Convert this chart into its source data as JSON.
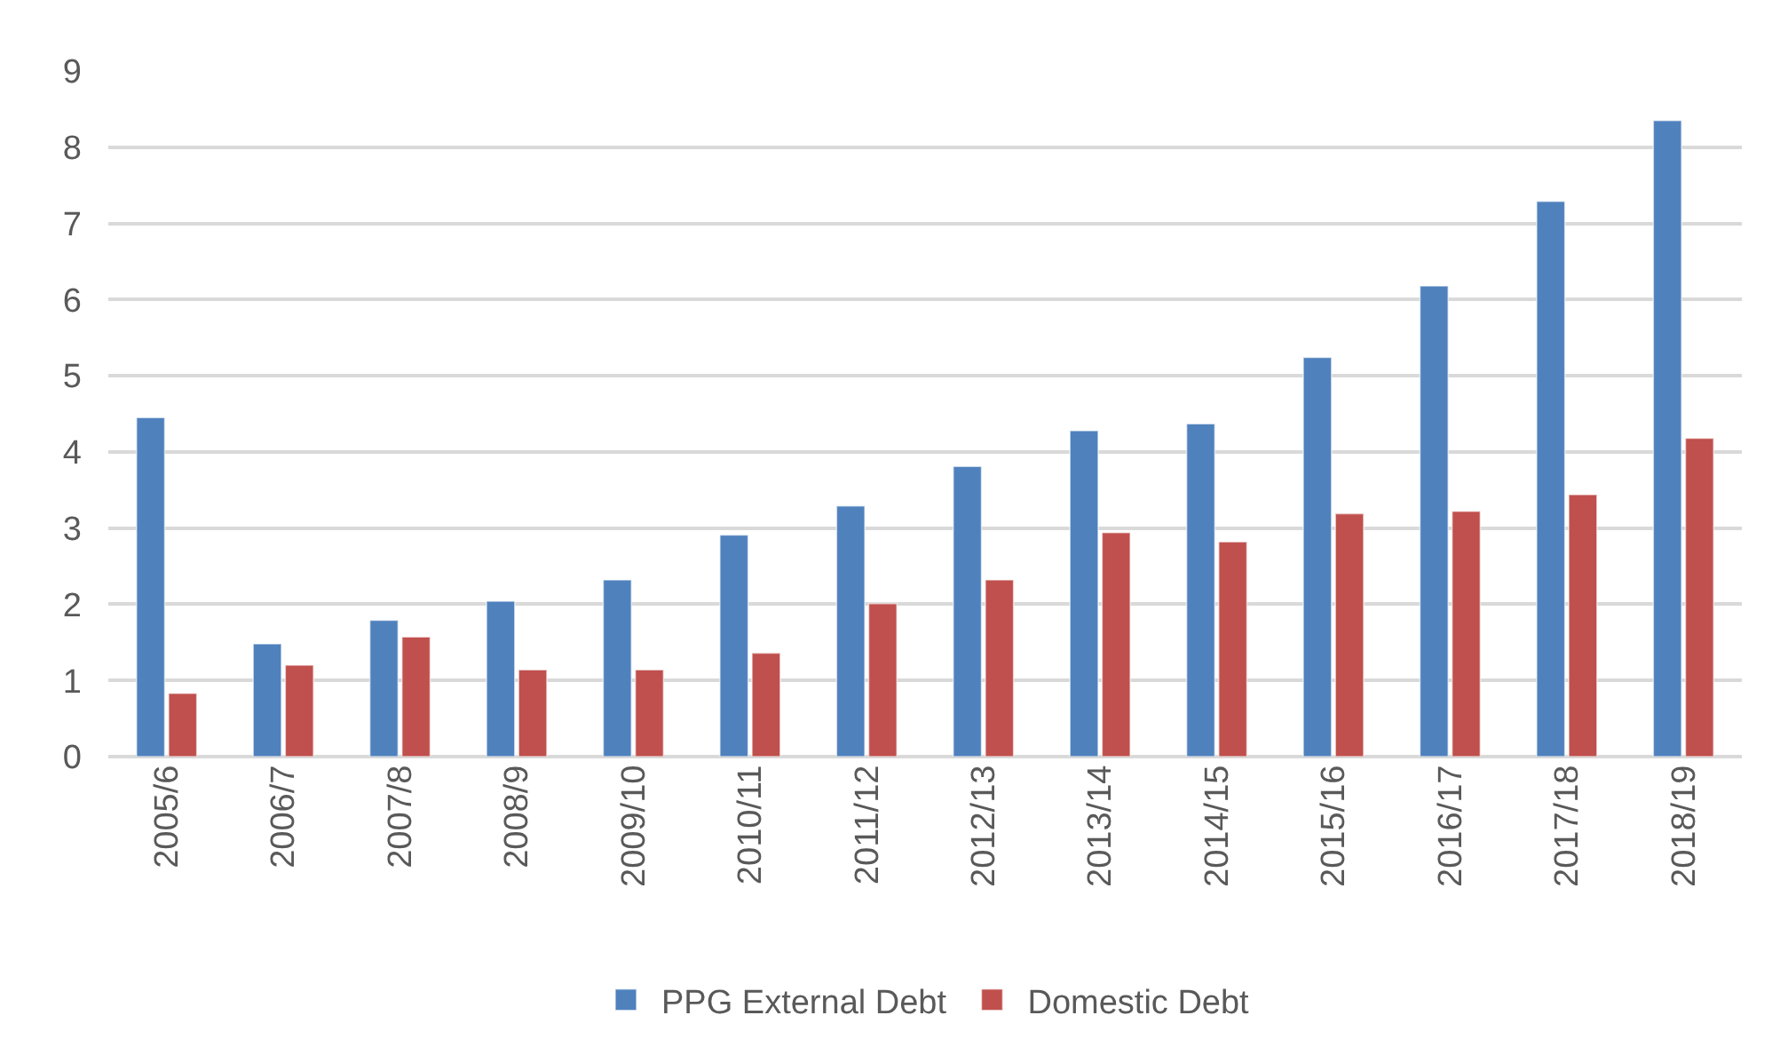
{
  "chart_data": {
    "type": "bar",
    "categories": [
      "2005/6",
      "2006/7",
      "2007/8",
      "2008/9",
      "2009/10",
      "2010/11",
      "2011/12",
      "2012/13",
      "2013/14",
      "2014/15",
      "2015/16",
      "2016/17",
      "2017/18",
      "2018/19"
    ],
    "series": [
      {
        "name": "PPG External Debt",
        "color": "#4f81bd",
        "values": [
          4.45,
          1.48,
          1.79,
          2.04,
          2.32,
          2.91,
          3.29,
          3.81,
          4.28,
          4.37,
          5.24,
          6.18,
          7.29,
          8.35
        ]
      },
      {
        "name": "Domestic Debt",
        "color": "#c0504d",
        "values": [
          0.83,
          1.2,
          1.57,
          1.14,
          1.14,
          1.36,
          2.01,
          2.32,
          2.94,
          2.82,
          3.19,
          3.22,
          3.44,
          4.18
        ]
      }
    ],
    "ylim": [
      0,
      9
    ],
    "yticks": [
      0,
      1,
      2,
      3,
      4,
      5,
      6,
      7,
      8,
      9
    ],
    "grid": "y",
    "legend": "bottom"
  }
}
